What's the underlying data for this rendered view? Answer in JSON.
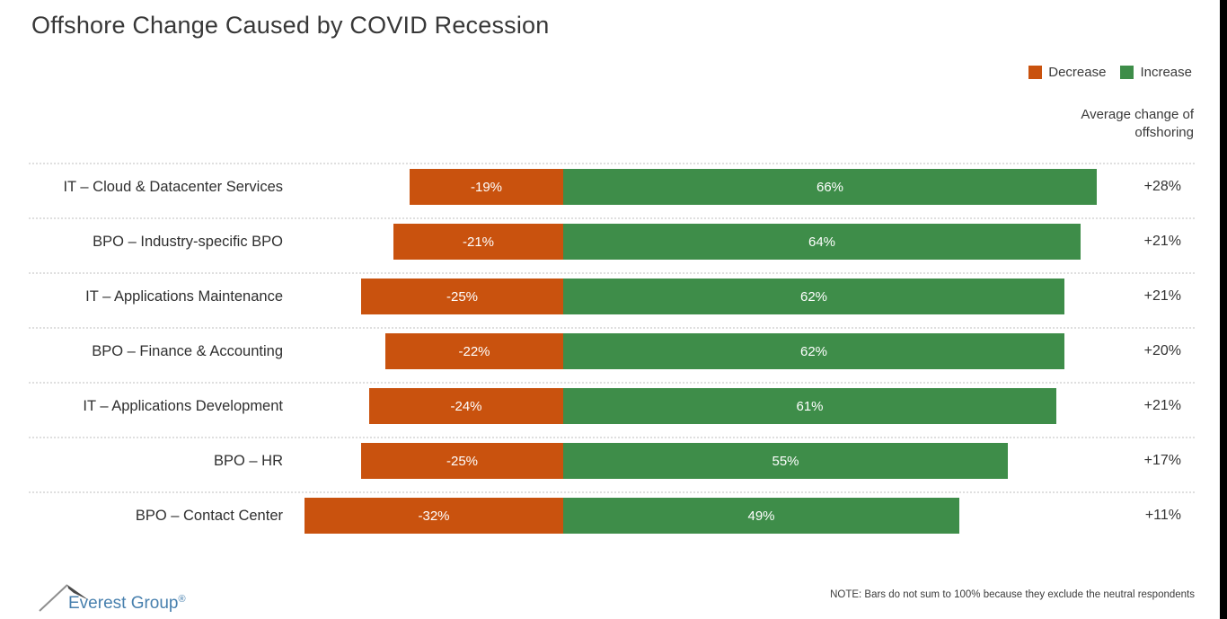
{
  "title": "Offshore Change Caused by COVID Recession",
  "legend": {
    "decrease": "Decrease",
    "increase": "Increase"
  },
  "colors": {
    "decrease": "#C9520E",
    "increase": "#3E8D49",
    "logo_text": "#4880AE"
  },
  "avg_column_header_line1": "Average change of",
  "avg_column_header_line2": "offshoring",
  "footer": {
    "logo_text": "Everest Group",
    "logo_mark": "®",
    "note": "NOTE: Bars do not sum to 100% because they exclude the neutral respondents"
  },
  "chart_data": {
    "type": "bar",
    "orientation": "horizontal-diverging",
    "title": "Offshore Change Caused by COVID Recession",
    "legend_position": "top-right",
    "categories": [
      "IT – Cloud & Datacenter Services",
      "BPO – Industry-specific BPO",
      "IT – Applications Maintenance",
      "BPO – Finance & Accounting",
      "IT – Applications Development",
      "BPO – HR",
      "BPO – Contact Center"
    ],
    "series": [
      {
        "name": "Decrease",
        "color": "#C9520E",
        "values": [
          -19,
          -21,
          -25,
          -22,
          -24,
          -25,
          -32
        ]
      },
      {
        "name": "Increase",
        "color": "#3E8D49",
        "values": [
          66,
          64,
          62,
          62,
          61,
          55,
          49
        ]
      }
    ],
    "average_change_of_offshoring": [
      28,
      21,
      21,
      20,
      21,
      17,
      11
    ],
    "rows": [
      {
        "category": "IT – Cloud & Datacenter Services",
        "decrease": -19,
        "increase": 66,
        "decrease_label": "-19%",
        "increase_label": "66%",
        "average_label": "+28%"
      },
      {
        "category": "BPO – Industry-specific BPO",
        "decrease": -21,
        "increase": 64,
        "decrease_label": "-21%",
        "increase_label": "64%",
        "average_label": "+21%"
      },
      {
        "category": "IT – Applications Maintenance",
        "decrease": -25,
        "increase": 62,
        "decrease_label": "-25%",
        "increase_label": "62%",
        "average_label": "+21%"
      },
      {
        "category": "BPO – Finance & Accounting",
        "decrease": -22,
        "increase": 62,
        "decrease_label": "-22%",
        "increase_label": "62%",
        "average_label": "+20%"
      },
      {
        "category": "IT – Applications Development",
        "decrease": -24,
        "increase": 61,
        "decrease_label": "-24%",
        "increase_label": "61%",
        "average_label": "+21%"
      },
      {
        "category": "BPO – HR",
        "decrease": -25,
        "increase": 55,
        "decrease_label": "-25%",
        "increase_label": "55%",
        "average_label": "+17%"
      },
      {
        "category": "BPO – Contact Center",
        "decrease": -32,
        "increase": 49,
        "decrease_label": "-32%",
        "increase_label": "49%",
        "average_label": "+11%"
      }
    ],
    "note": "NOTE: Bars do not sum to 100% because they exclude the neutral respondents"
  }
}
